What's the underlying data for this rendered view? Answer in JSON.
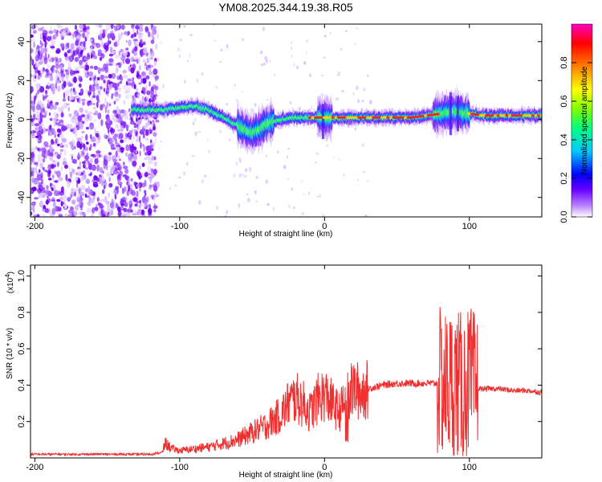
{
  "title": "YM08.2025.344.19.38.R05",
  "chart_data": [
    {
      "type": "heatmap",
      "name": "spectrogram",
      "xlabel": "Height of straight line (km)",
      "ylabel": "Frequency (Hz)",
      "xlim": [
        -203,
        150
      ],
      "ylim": [
        -50,
        49
      ],
      "xticks": [
        -200,
        -100,
        0,
        100
      ],
      "yticks": [
        -40,
        -20,
        0,
        20,
        40
      ],
      "colorbar": {
        "label": "Normalized spectral amplitude",
        "range": [
          0,
          1
        ],
        "ticks": [
          0.0,
          0.2,
          0.4,
          0.6,
          0.8
        ],
        "colormap": [
          "#ffffff",
          "#b980ff",
          "#6a00ff",
          "#0000ff",
          "#00c8ff",
          "#00ff80",
          "#80ff00",
          "#ffff00",
          "#ff8000",
          "#ff0000",
          "#ff00c0"
        ]
      },
      "ridge": {
        "x": [
          -133,
          -120,
          -110,
          -100,
          -90,
          -80,
          -70,
          -60,
          -55,
          -50,
          -45,
          -40,
          -35,
          -30,
          -20,
          -10,
          0,
          5,
          10,
          20,
          30,
          40,
          50,
          60,
          70,
          80,
          90,
          100,
          110,
          120,
          130,
          140,
          150
        ],
        "y": [
          5,
          5,
          5,
          6,
          7,
          5,
          1,
          -3,
          -5,
          -7,
          -5,
          -2,
          -1,
          0,
          1,
          1,
          1,
          1,
          1,
          1,
          1,
          1,
          1,
          1,
          2,
          3,
          4,
          3,
          2,
          2,
          2,
          2,
          2
        ]
      },
      "noise_region": [
        -203,
        -115
      ]
    },
    {
      "type": "line",
      "name": "snr",
      "xlabel": "Height of straight line (km)",
      "ylabel": "SNR (10 * v/v)",
      "scale_label": "(x10",
      "scale_exp": "4",
      "xlim": [
        -203,
        150
      ],
      "ylim": [
        0.0,
        1.06
      ],
      "xticks": [
        -200,
        -100,
        0,
        100
      ],
      "yticks": [
        0.2,
        0.4,
        0.6,
        0.8,
        1.0
      ],
      "color": "#f03030",
      "series": [
        {
          "x": [
            -203,
            -180,
            -160,
            -140,
            -120,
            -112,
            -110,
            -105,
            -100,
            -90,
            -80,
            -70,
            -60,
            -50,
            -40,
            -30,
            -25,
            -20,
            -15,
            -10,
            -5,
            0,
            5,
            10,
            15,
            20,
            25,
            30,
            40,
            50,
            60,
            70,
            80,
            85,
            90,
            95,
            100,
            105,
            110,
            120,
            130,
            140,
            150
          ],
          "y": [
            0.02,
            0.02,
            0.02,
            0.02,
            0.02,
            0.03,
            0.08,
            0.05,
            0.04,
            0.05,
            0.06,
            0.08,
            0.1,
            0.14,
            0.18,
            0.24,
            0.3,
            0.33,
            0.3,
            0.25,
            0.32,
            0.35,
            0.3,
            0.25,
            0.32,
            0.38,
            0.36,
            0.38,
            0.4,
            0.41,
            0.41,
            0.41,
            0.41,
            0.4,
            0.42,
            0.38,
            0.42,
            0.38,
            0.38,
            0.38,
            0.37,
            0.37,
            0.36
          ]
        }
      ]
    }
  ]
}
